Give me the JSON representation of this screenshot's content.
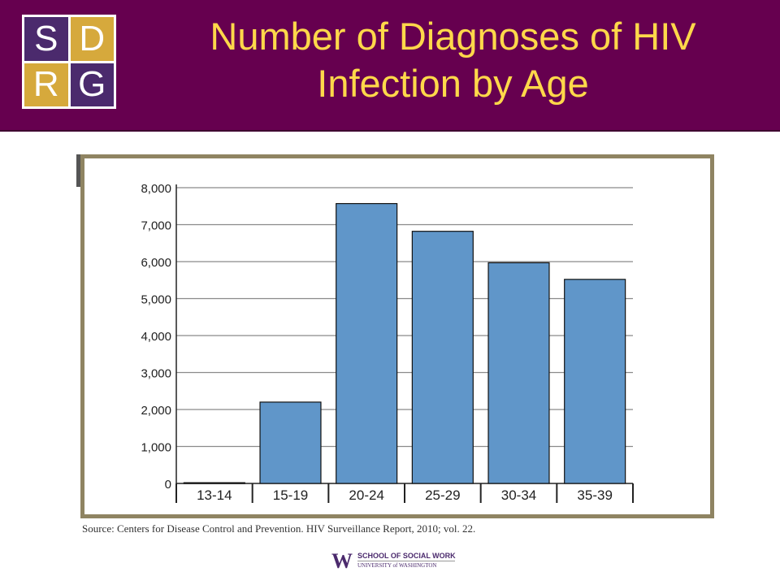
{
  "header": {
    "title_line1": "Number of Diagnoses of HIV",
    "title_line2": "Infection by Age",
    "background_color": "#66004f",
    "title_color": "#ffd84a"
  },
  "logo": {
    "letters": [
      "S",
      "D",
      "R",
      "G"
    ]
  },
  "chart_data": {
    "type": "bar",
    "categories": [
      "13-14",
      "15-19",
      "20-24",
      "25-29",
      "30-34",
      "35-39"
    ],
    "values": [
      20,
      2200,
      7570,
      6820,
      5970,
      5520
    ],
    "ylim": [
      0,
      8000
    ],
    "yticks": [
      0,
      1000,
      2000,
      3000,
      4000,
      5000,
      6000,
      7000,
      8000
    ],
    "ytick_labels": [
      "0",
      "1,000",
      "2,000",
      "3,000",
      "4,000",
      "5,000",
      "6,000",
      "7,000",
      "8,000"
    ],
    "grid": true,
    "bar_color": "#6096c9",
    "title": "",
    "xlabel": "",
    "ylabel": ""
  },
  "source_text": "Source: Centers for Disease Control and Prevention. HIV Surveillance Report, 2010; vol. 22.",
  "footer": {
    "mark": "W",
    "school": "SCHOOL OF SOCIAL WORK",
    "university": "UNIVERSITY of WASHINGTON"
  }
}
